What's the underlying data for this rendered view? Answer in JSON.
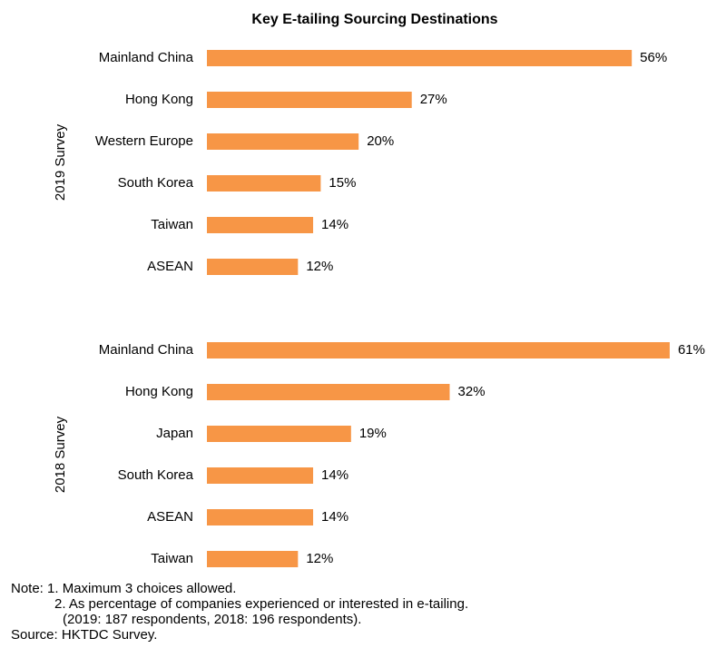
{
  "chart_data": {
    "type": "bar",
    "orientation": "horizontal",
    "title": "Key E-tailing Sourcing Destinations",
    "value_suffix": "%",
    "xlim": [
      0,
      61
    ],
    "grid": false,
    "colors": {
      "bar": "#F79646"
    },
    "groups": [
      {
        "label": "2019 Survey",
        "categories": [
          "Mainland China",
          "Hong Kong",
          "Western Europe",
          "South Korea",
          "Taiwan",
          "ASEAN"
        ],
        "values": [
          56,
          27,
          20,
          15,
          14,
          12
        ]
      },
      {
        "label": "2018 Survey",
        "categories": [
          "Mainland China",
          "Hong Kong",
          "Japan",
          "South Korea",
          "ASEAN",
          "Taiwan"
        ],
        "values": [
          61,
          32,
          19,
          14,
          14,
          12
        ]
      }
    ]
  },
  "notes": {
    "line1": "Note: 1. Maximum 3 choices allowed.",
    "line2": "2. As percentage of companies experienced or interested in e-tailing.",
    "line3": "(2019: 187 respondents, 2018: 196 respondents).",
    "source": "Source: HKTDC Survey."
  }
}
